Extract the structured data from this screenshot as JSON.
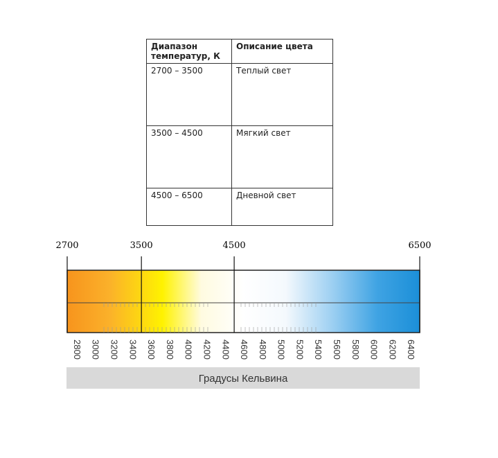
{
  "table": {
    "header": [
      "Диапазон температур, К",
      "Описание цвета"
    ],
    "rows": [
      [
        "2700 – 3500",
        "Теплый  свет"
      ],
      [
        "3500 – 4500",
        "Мягкий свет"
      ],
      [
        "4500  – 6500",
        "Дневной свет"
      ]
    ]
  },
  "scale": {
    "top_labels": [
      2700,
      3500,
      4500,
      6500
    ],
    "bottom_labels": [
      2800,
      3000,
      3200,
      3400,
      3600,
      3800,
      4000,
      4200,
      4400,
      4600,
      4800,
      5000,
      5200,
      5400,
      5600,
      5800,
      6000,
      6200,
      6400
    ],
    "caption": "Градусы Кельвина"
  }
}
